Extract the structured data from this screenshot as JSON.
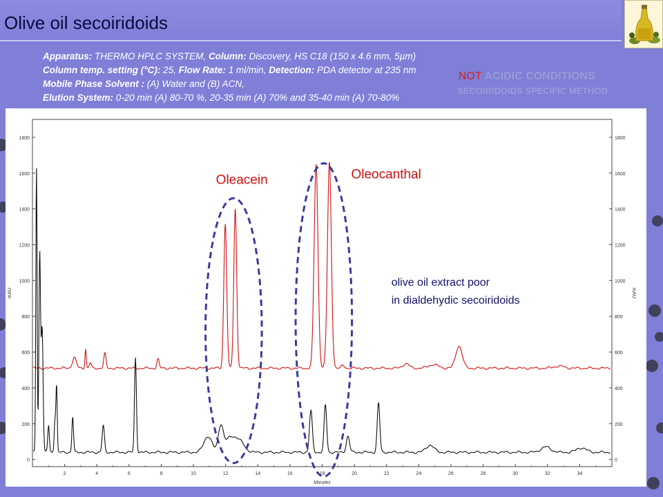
{
  "slide": {
    "title": "Olive oil secoiridoids"
  },
  "method": {
    "line1_label1": "Apparatus:",
    "line1_value1": " THERMO HPLC SYSTEM,",
    "line1_label2": " Column:",
    "line1_value2": " Discovery, HS C18 (150 x 4.6 mm, 5µm)",
    "line2_label1": "Column temp. setting (°C):",
    "line2_value1": " 25,",
    "line2_label2": " Flow Rate:",
    "line2_value2": " 1 ml/min,",
    "line2_label3": " Detection:",
    "line2_value3": " PDA detector at 235 nm",
    "line3_label1": "Mobile Phase Solvent :",
    "line3_value1": " (A) Water and (B) ACN,",
    "line4_label1": "Elution System:",
    "line4_value1": " 0-20 min (A) 80-70 %, 20-35 min (A) 70% and 35-40 min (A) 70-80%"
  },
  "conditions": {
    "not_text": "NOT",
    "acidic_text": " ACIDIC CONDITIONS",
    "specific_text": "SECOIRIDOIDS SPECIFIC METHOD"
  },
  "chart_data": {
    "type": "line",
    "xlabel": "Minutes",
    "ylabel": "mAU",
    "xlim": [
      0,
      36
    ],
    "ylim": [
      -40,
      1900
    ],
    "x_ticks": [
      "2",
      "4",
      "6",
      "8",
      "10",
      "12",
      "14",
      "16",
      "18",
      "20",
      "22",
      "24",
      "26",
      "28",
      "30",
      "32",
      "34"
    ],
    "y_ticks": [
      "0",
      "200",
      "400",
      "600",
      "800",
      "1000",
      "1200",
      "1400",
      "1600",
      "1800"
    ],
    "grid": false,
    "series": [
      {
        "color": "#d01010",
        "baseline": 510,
        "peaks": [
          {
            "x": 2.6,
            "h": 60,
            "w": 0.12
          },
          {
            "x": 3.3,
            "h": 110,
            "w": 0.04
          },
          {
            "x": 3.6,
            "h": 30,
            "w": 0.06
          },
          {
            "x": 4.5,
            "h": 80,
            "w": 0.07
          },
          {
            "x": 7.8,
            "h": 50,
            "w": 0.07
          },
          {
            "x": 11.98,
            "h": 810,
            "w": 0.09
          },
          {
            "x": 12.6,
            "h": 890,
            "w": 0.09
          },
          {
            "x": 17.62,
            "h": 1140,
            "w": 0.12
          },
          {
            "x": 18.45,
            "h": 1150,
            "w": 0.12
          },
          {
            "x": 19.3,
            "h": 15,
            "w": 0.1
          },
          {
            "x": 23.2,
            "h": 25,
            "w": 0.2
          },
          {
            "x": 24.9,
            "h": 20,
            "w": 0.3
          },
          {
            "x": 26.5,
            "h": 125,
            "w": 0.2
          },
          {
            "x": 32.7,
            "h": 12,
            "w": 0.3
          }
        ]
      },
      {
        "color": "#101010",
        "baseline": 40,
        "peaks": [
          {
            "x": 0.25,
            "h": 1600,
            "w": 0.04
          },
          {
            "x": 0.45,
            "h": 1100,
            "w": 0.05
          },
          {
            "x": 0.6,
            "h": 700,
            "w": 0.06
          },
          {
            "x": 1.0,
            "h": 150,
            "w": 0.05
          },
          {
            "x": 1.4,
            "h": 180,
            "w": 0.05
          },
          {
            "x": 1.5,
            "h": 360,
            "w": 0.04
          },
          {
            "x": 2.5,
            "h": 200,
            "w": 0.05
          },
          {
            "x": 4.4,
            "h": 150,
            "w": 0.07
          },
          {
            "x": 6.4,
            "h": 530,
            "w": 0.06
          },
          {
            "x": 10.9,
            "h": 90,
            "w": 0.25
          },
          {
            "x": 11.7,
            "h": 140,
            "w": 0.15
          },
          {
            "x": 12.3,
            "h": 80,
            "w": 0.35
          },
          {
            "x": 12.9,
            "h": 50,
            "w": 0.3
          },
          {
            "x": 17.3,
            "h": 230,
            "w": 0.09
          },
          {
            "x": 18.2,
            "h": 265,
            "w": 0.08
          },
          {
            "x": 19.6,
            "h": 90,
            "w": 0.1
          },
          {
            "x": 21.5,
            "h": 275,
            "w": 0.08
          },
          {
            "x": 24.7,
            "h": 40,
            "w": 0.25
          },
          {
            "x": 31.9,
            "h": 30,
            "w": 0.3
          },
          {
            "x": 34.1,
            "h": 25,
            "w": 0.3
          }
        ]
      }
    ],
    "annotations": [
      {
        "text": "Oleacein",
        "color": "#d01010",
        "x": 11.4,
        "y": 1540
      },
      {
        "text": "Oleocanthal",
        "color": "#d01010",
        "x": 19.8,
        "y": 1570
      },
      {
        "text": "olive oil extract poor",
        "color": "#10106a",
        "x": 22.3,
        "y": 970
      },
      {
        "text": " in dialdehydic secoiridoids",
        "color": "#10106a",
        "x": 22.3,
        "y": 870
      }
    ],
    "ellipses": [
      {
        "cx": 12.5,
        "cy": 720,
        "rx": 1.75,
        "ry": 740
      },
      {
        "cx": 18.1,
        "cy": 780,
        "rx": 1.75,
        "ry": 875
      }
    ]
  }
}
